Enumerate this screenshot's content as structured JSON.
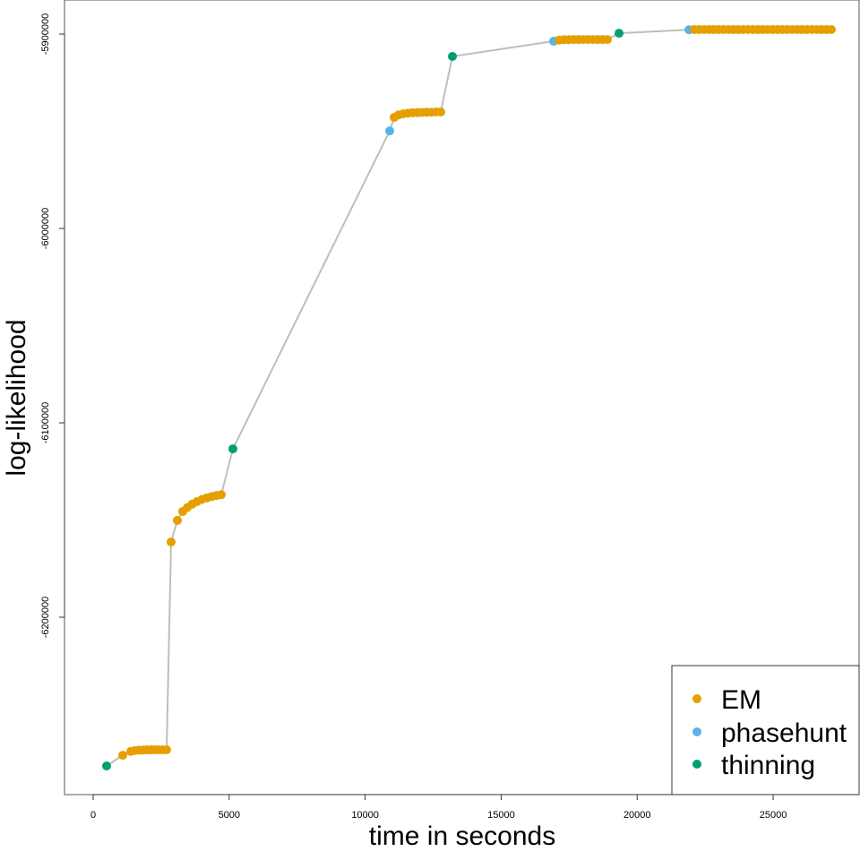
{
  "chart_data": {
    "type": "scatter",
    "title": "",
    "xlabel": "time in seconds",
    "ylabel": "log-likelihood",
    "xlim": [
      -1070,
      28110
    ],
    "ylim": [
      -6283000,
      -5882500
    ],
    "xticks": [
      0,
      5000,
      10000,
      15000,
      20000,
      25000
    ],
    "xtick_labels": [
      "0",
      "5000",
      "10000",
      "15000",
      "20000",
      "25000"
    ],
    "yticks": [
      -5900000,
      -6000000,
      -6100000,
      -6200000
    ],
    "ytick_labels": [
      "-5900000",
      "-6000000",
      "-6100000",
      "-6200000"
    ],
    "grid": false,
    "legend_position": "bottom-right",
    "line_color": "#bebebe",
    "legend": [
      {
        "name": "EM",
        "color": "#E69F00"
      },
      {
        "name": "phasehunt",
        "color": "#56B4E9"
      },
      {
        "name": "thinning",
        "color": "#009E73"
      }
    ],
    "points": [
      {
        "x": 494,
        "y": -6276500,
        "type": "thinning"
      },
      {
        "x": 1087,
        "y": -6271000,
        "type": "EM"
      },
      {
        "x": 1383,
        "y": -6269000,
        "type": "EM"
      },
      {
        "x": 1530,
        "y": -6268600,
        "type": "EM"
      },
      {
        "x": 1680,
        "y": -6268400,
        "type": "EM"
      },
      {
        "x": 1830,
        "y": -6268300,
        "type": "EM"
      },
      {
        "x": 1980,
        "y": -6268200,
        "type": "EM"
      },
      {
        "x": 2120,
        "y": -6268200,
        "type": "EM"
      },
      {
        "x": 2270,
        "y": -6268200,
        "type": "EM"
      },
      {
        "x": 2410,
        "y": -6268200,
        "type": "EM"
      },
      {
        "x": 2560,
        "y": -6268200,
        "type": "EM"
      },
      {
        "x": 2700,
        "y": -6268200,
        "type": "EM"
      },
      {
        "x": 2866,
        "y": -6161300,
        "type": "EM"
      },
      {
        "x": 3096,
        "y": -6150200,
        "type": "EM"
      },
      {
        "x": 3294,
        "y": -6145600,
        "type": "EM"
      },
      {
        "x": 3460,
        "y": -6143600,
        "type": "EM"
      },
      {
        "x": 3640,
        "y": -6141800,
        "type": "EM"
      },
      {
        "x": 3820,
        "y": -6140500,
        "type": "EM"
      },
      {
        "x": 4000,
        "y": -6139400,
        "type": "EM"
      },
      {
        "x": 4180,
        "y": -6138600,
        "type": "EM"
      },
      {
        "x": 4360,
        "y": -6137900,
        "type": "EM"
      },
      {
        "x": 4530,
        "y": -6137400,
        "type": "EM"
      },
      {
        "x": 4710,
        "y": -6137000,
        "type": "EM"
      },
      {
        "x": 5138,
        "y": -6113400,
        "type": "thinning"
      },
      {
        "x": 10903,
        "y": -5949800,
        "type": "phasehunt"
      },
      {
        "x": 11067,
        "y": -5942900,
        "type": "EM"
      },
      {
        "x": 11230,
        "y": -5941600,
        "type": "EM"
      },
      {
        "x": 11400,
        "y": -5941000,
        "type": "EM"
      },
      {
        "x": 11570,
        "y": -5940700,
        "type": "EM"
      },
      {
        "x": 11740,
        "y": -5940500,
        "type": "EM"
      },
      {
        "x": 11920,
        "y": -5940400,
        "type": "EM"
      },
      {
        "x": 12090,
        "y": -5940300,
        "type": "EM"
      },
      {
        "x": 12260,
        "y": -5940200,
        "type": "EM"
      },
      {
        "x": 12430,
        "y": -5940200,
        "type": "EM"
      },
      {
        "x": 12610,
        "y": -5940100,
        "type": "EM"
      },
      {
        "x": 12780,
        "y": -5940100,
        "type": "EM"
      },
      {
        "x": 13208,
        "y": -5911500,
        "type": "thinning"
      },
      {
        "x": 16930,
        "y": -5903700,
        "type": "phasehunt"
      },
      {
        "x": 17128,
        "y": -5903100,
        "type": "EM"
      },
      {
        "x": 17310,
        "y": -5902900,
        "type": "EM"
      },
      {
        "x": 17490,
        "y": -5902900,
        "type": "EM"
      },
      {
        "x": 17670,
        "y": -5902800,
        "type": "EM"
      },
      {
        "x": 17840,
        "y": -5902800,
        "type": "EM"
      },
      {
        "x": 18020,
        "y": -5902800,
        "type": "EM"
      },
      {
        "x": 18200,
        "y": -5902800,
        "type": "EM"
      },
      {
        "x": 18370,
        "y": -5902800,
        "type": "EM"
      },
      {
        "x": 18550,
        "y": -5902800,
        "type": "EM"
      },
      {
        "x": 18730,
        "y": -5902800,
        "type": "EM"
      },
      {
        "x": 18906,
        "y": -5902800,
        "type": "EM"
      },
      {
        "x": 19335,
        "y": -5899600,
        "type": "thinning"
      },
      {
        "x": 21904,
        "y": -5897800,
        "type": "phasehunt"
      },
      {
        "x": 22100,
        "y": -5897700,
        "type": "EM"
      },
      {
        "x": 22280,
        "y": -5897700,
        "type": "EM"
      },
      {
        "x": 22460,
        "y": -5897700,
        "type": "EM"
      },
      {
        "x": 22640,
        "y": -5897700,
        "type": "EM"
      },
      {
        "x": 22820,
        "y": -5897700,
        "type": "EM"
      },
      {
        "x": 23000,
        "y": -5897700,
        "type": "EM"
      },
      {
        "x": 23180,
        "y": -5897700,
        "type": "EM"
      },
      {
        "x": 23360,
        "y": -5897700,
        "type": "EM"
      },
      {
        "x": 23540,
        "y": -5897700,
        "type": "EM"
      },
      {
        "x": 23720,
        "y": -5897700,
        "type": "EM"
      },
      {
        "x": 23900,
        "y": -5897700,
        "type": "EM"
      },
      {
        "x": 24080,
        "y": -5897700,
        "type": "EM"
      },
      {
        "x": 24260,
        "y": -5897700,
        "type": "EM"
      },
      {
        "x": 24440,
        "y": -5897700,
        "type": "EM"
      },
      {
        "x": 24620,
        "y": -5897700,
        "type": "EM"
      },
      {
        "x": 24800,
        "y": -5897700,
        "type": "EM"
      },
      {
        "x": 24980,
        "y": -5897700,
        "type": "EM"
      },
      {
        "x": 25160,
        "y": -5897700,
        "type": "EM"
      },
      {
        "x": 25340,
        "y": -5897700,
        "type": "EM"
      },
      {
        "x": 25520,
        "y": -5897700,
        "type": "EM"
      },
      {
        "x": 25700,
        "y": -5897700,
        "type": "EM"
      },
      {
        "x": 25880,
        "y": -5897700,
        "type": "EM"
      },
      {
        "x": 26060,
        "y": -5897700,
        "type": "EM"
      },
      {
        "x": 26240,
        "y": -5897700,
        "type": "EM"
      },
      {
        "x": 26420,
        "y": -5897700,
        "type": "EM"
      },
      {
        "x": 26600,
        "y": -5897700,
        "type": "EM"
      },
      {
        "x": 26780,
        "y": -5897700,
        "type": "EM"
      },
      {
        "x": 26960,
        "y": -5897700,
        "type": "EM"
      },
      {
        "x": 27140,
        "y": -5897700,
        "type": "EM"
      }
    ]
  }
}
